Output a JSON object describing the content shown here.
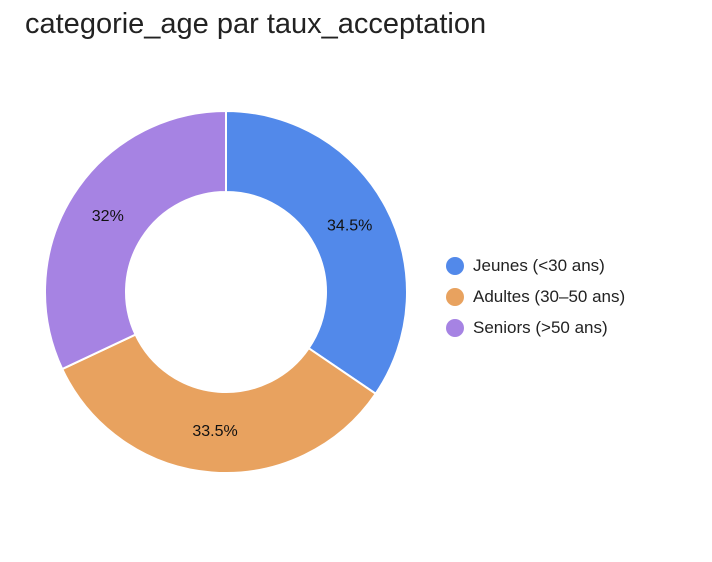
{
  "chart_data": {
    "type": "pie",
    "donut": true,
    "title": "categorie_age par taux_acceptation",
    "categories": [
      "Jeunes (<30 ans)",
      "Adultes (30–50 ans)",
      "Seniors (>50 ans)"
    ],
    "values": [
      34.5,
      33.5,
      32
    ],
    "value_labels": [
      "34.5%",
      "33.5%",
      "32%"
    ],
    "colors": [
      "#5289EA",
      "#E8A25F",
      "#A683E3"
    ],
    "legend_position": "right"
  }
}
